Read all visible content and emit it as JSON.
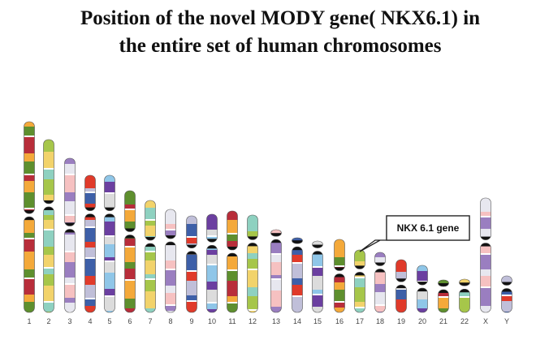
{
  "title": [
    "Position of the novel MODY gene( NKX6.1) in",
    "the entire set of  human chromosomes"
  ],
  "chromosomes": [
    "1",
    "2",
    "3",
    "4",
    "5",
    "6",
    "7",
    "8",
    "9",
    "10",
    "11",
    "12",
    "13",
    "14",
    "15",
    "16",
    "17",
    "18",
    "19",
    "20",
    "21",
    "22",
    "X",
    "Y"
  ],
  "callout": "NKX 6.1 gene"
}
